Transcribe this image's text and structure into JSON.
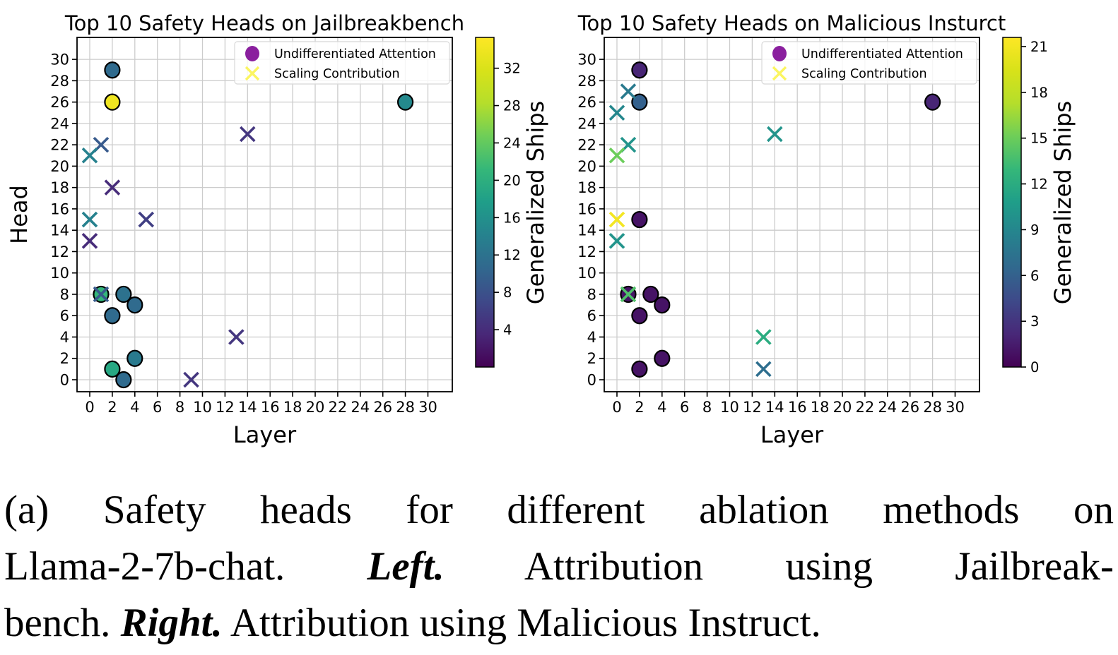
{
  "figure": {
    "caption": {
      "lines": [
        {
          "justify": true,
          "segments": [
            {
              "text": "(a) Safety heads for different ablation methods on",
              "emphasis": false
            }
          ]
        },
        {
          "justify": true,
          "segments": [
            {
              "text": "Llama-2-7b-chat. ",
              "emphasis": false
            },
            {
              "text": "Left.",
              "emphasis": true
            },
            {
              "text": " Attribution using Jailbreak-",
              "emphasis": false
            }
          ]
        },
        {
          "justify": false,
          "segments": [
            {
              "text": "bench. ",
              "emphasis": false
            },
            {
              "text": "Right.",
              "emphasis": true
            },
            {
              "text": " Attribution using Malicious Instruct.",
              "emphasis": false
            }
          ]
        }
      ]
    }
  },
  "colors": {
    "legend_circle": "#8a1f9e",
    "legend_x": "#fbf561",
    "grid": "#cccccc",
    "axis": "#000000",
    "legend_border": "#d8d8d8"
  },
  "chart_data": [
    {
      "type": "scatter",
      "title": "Top 10 Safety Heads on Jailbreakbench",
      "xlabel": "Layer",
      "ylabel": "Head",
      "xticks": [
        0,
        2,
        4,
        6,
        8,
        10,
        12,
        14,
        16,
        18,
        20,
        22,
        24,
        26,
        28,
        30
      ],
      "yticks": [
        0,
        2,
        4,
        6,
        8,
        10,
        12,
        14,
        16,
        18,
        20,
        22,
        24,
        26,
        28,
        30
      ],
      "xlim": [
        -1.1,
        33.3
      ],
      "ylim": [
        -1.2,
        32.1
      ],
      "colorbar": {
        "label": "Generalized Ships",
        "ticks": [
          4,
          8,
          12,
          16,
          20,
          24,
          28,
          32
        ],
        "vmin": 0,
        "vmax": 35.3
      },
      "series": [
        {
          "name": "Undifferentiated Attention",
          "marker": "circle",
          "points": [
            {
              "layer": 2,
              "head": 29,
              "ships": 11
            },
            {
              "layer": 2,
              "head": 26,
              "ships": 34
            },
            {
              "layer": 28,
              "head": 26,
              "ships": 15
            },
            {
              "layer": 1,
              "head": 8,
              "ships": 21
            },
            {
              "layer": 3,
              "head": 8,
              "ships": 12
            },
            {
              "layer": 4,
              "head": 7,
              "ships": 11
            },
            {
              "layer": 2,
              "head": 6,
              "ships": 11
            },
            {
              "layer": 4,
              "head": 2,
              "ships": 13
            },
            {
              "layer": 2,
              "head": 1,
              "ships": 19
            },
            {
              "layer": 3,
              "head": 0,
              "ships": 11
            }
          ]
        },
        {
          "name": "Scaling Contribution",
          "marker": "x",
          "points": [
            {
              "layer": 14,
              "head": 23,
              "ships": 5
            },
            {
              "layer": 1,
              "head": 22,
              "ships": 9
            },
            {
              "layer": 0,
              "head": 21,
              "ships": 14
            },
            {
              "layer": 2,
              "head": 18,
              "ships": 4
            },
            {
              "layer": 0,
              "head": 15,
              "ships": 14
            },
            {
              "layer": 5,
              "head": 15,
              "ships": 6
            },
            {
              "layer": 0,
              "head": 13,
              "ships": 4
            },
            {
              "layer": 1,
              "head": 8,
              "ships": 9
            },
            {
              "layer": 13,
              "head": 4,
              "ships": 5
            },
            {
              "layer": 9,
              "head": 0,
              "ships": 5
            }
          ]
        }
      ]
    },
    {
      "type": "scatter",
      "title": "Top 10 Safety Heads on Malicious Insturct",
      "xlabel": "Layer",
      "ylabel": "",
      "xticks": [
        0,
        2,
        4,
        6,
        8,
        10,
        12,
        14,
        16,
        18,
        20,
        22,
        24,
        26,
        28,
        30
      ],
      "yticks": [
        0,
        2,
        4,
        6,
        8,
        10,
        12,
        14,
        16,
        18,
        20,
        22,
        24,
        26,
        28,
        30
      ],
      "xlim": [
        -1.1,
        33.3
      ],
      "ylim": [
        -1.2,
        32.1
      ],
      "colorbar": {
        "label": "Generalized Ships",
        "ticks": [
          0,
          3,
          6,
          9,
          12,
          15,
          18,
          21
        ],
        "vmin": 0,
        "vmax": 21.6
      },
      "series": [
        {
          "name": "Undifferentiated Attention",
          "marker": "circle",
          "points": [
            {
              "layer": 2,
              "head": 29,
              "ships": 2
            },
            {
              "layer": 2,
              "head": 26,
              "ships": 6
            },
            {
              "layer": 28,
              "head": 26,
              "ships": 2
            },
            {
              "layer": 2,
              "head": 15,
              "ships": 1
            },
            {
              "layer": 1,
              "head": 8,
              "ships": 1
            },
            {
              "layer": 3,
              "head": 8,
              "ships": 1
            },
            {
              "layer": 4,
              "head": 7,
              "ships": 1
            },
            {
              "layer": 2,
              "head": 6,
              "ships": 1
            },
            {
              "layer": 4,
              "head": 2,
              "ships": 1
            },
            {
              "layer": 2,
              "head": 1,
              "ships": 1
            }
          ]
        },
        {
          "name": "Scaling Contribution",
          "marker": "x",
          "points": [
            {
              "layer": 1,
              "head": 27,
              "ships": 8
            },
            {
              "layer": 0,
              "head": 25,
              "ships": 9
            },
            {
              "layer": 14,
              "head": 23,
              "ships": 10
            },
            {
              "layer": 1,
              "head": 22,
              "ships": 10
            },
            {
              "layer": 0,
              "head": 21,
              "ships": 15
            },
            {
              "layer": 0,
              "head": 15,
              "ships": 21
            },
            {
              "layer": 0,
              "head": 13,
              "ships": 10
            },
            {
              "layer": 1,
              "head": 8,
              "ships": 14
            },
            {
              "layer": 13,
              "head": 4,
              "ships": 12
            },
            {
              "layer": 13,
              "head": 1,
              "ships": 7
            }
          ]
        }
      ]
    }
  ]
}
